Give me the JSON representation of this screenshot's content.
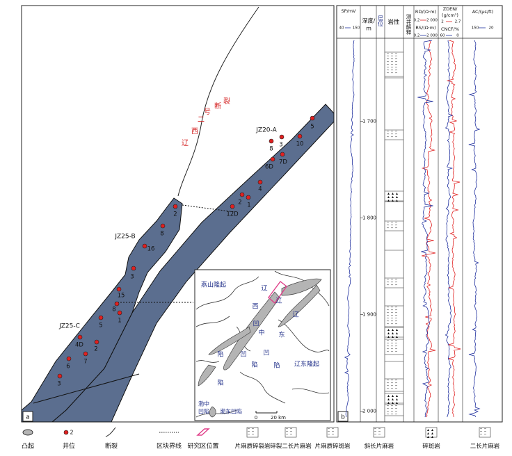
{
  "map_panel": {
    "label": "a",
    "fault_label": [
      "辽",
      "西",
      "二",
      "号",
      "断",
      "裂"
    ],
    "blocks": [
      {
        "name": "JZ20-A",
        "wells": [
          "5",
          "10",
          "3",
          "8",
          "7D",
          "6D",
          "4",
          "2",
          "1",
          "12D"
        ]
      },
      {
        "name": "JZ25-B",
        "wells": [
          "2",
          "8",
          "16",
          "3"
        ]
      },
      {
        "name": "JZ25-C",
        "wells": [
          "15",
          "8",
          "1",
          "5",
          "4D",
          "2",
          "7",
          "6",
          "3"
        ]
      }
    ],
    "inset": {
      "labels": [
        "燕山隆起",
        "辽",
        "西",
        "辽",
        "辽",
        "凹",
        "中",
        "东",
        "陷",
        "凹",
        "凹",
        "陷",
        "陷",
        "辽东隆起",
        "陷",
        "渤中",
        "凹陷",
        "渤东凹陷"
      ],
      "scale": [
        "0",
        "20 km"
      ]
    }
  },
  "log_panel": {
    "label": "b",
    "depth_header": [
      "深度/",
      "m"
    ],
    "horizon_header": "层位",
    "lithology_header": "岩性",
    "interpretation_header": "测井解释",
    "depth_range": [
      1616,
      2006
    ],
    "depth_ticks": [
      {
        "value": 1700,
        "label": "1 700"
      },
      {
        "value": 1800,
        "label": "1 800"
      },
      {
        "value": 1900,
        "label": "1 900"
      },
      {
        "value": 2000,
        "label": "2 000"
      }
    ],
    "tracks": [
      {
        "name_lines": [
          "SP/mV"
        ],
        "left": 40,
        "right": 150,
        "color": "#1f2f9e"
      },
      {
        "name_lines": [
          "RD/(Ω·m)"
        ],
        "left": 0.2,
        "right": {
          "value": 2000,
          "label": "2 000"
        },
        "color": "#e02020"
      },
      {
        "name_lines": [
          "RS/(Ω·m)"
        ],
        "left": 0.2,
        "right": {
          "value": 2000,
          "label": "2 000"
        },
        "color": "#1f2f9e"
      },
      {
        "name_lines": [
          "ZDEN/",
          "(g/cm³)"
        ],
        "left": 2,
        "right": 2.7,
        "color": "#e02020"
      },
      {
        "name_lines": [
          "CNCF/%"
        ],
        "left": 60,
        "right": 0,
        "color": "#1f2f9e"
      },
      {
        "name_lines": [
          "AC/(μs/ft)"
        ],
        "left": 150,
        "right": 20,
        "color": "#1f2f9e"
      }
    ]
  },
  "legend": [
    {
      "label": "凸起"
    },
    {
      "label": "井位",
      "symbol_text": "2"
    },
    {
      "label": "断裂"
    },
    {
      "label": "区块界线"
    },
    {
      "label": "研究区位置"
    },
    {
      "label": "片麻质碎裂岩"
    },
    {
      "label": "碎裂二长片麻岩"
    },
    {
      "label": "片麻质碎斑岩"
    },
    {
      "label": "斜长片麻岩"
    },
    {
      "label": "碎斑岩"
    },
    {
      "label": "二长片麻岩"
    }
  ]
}
